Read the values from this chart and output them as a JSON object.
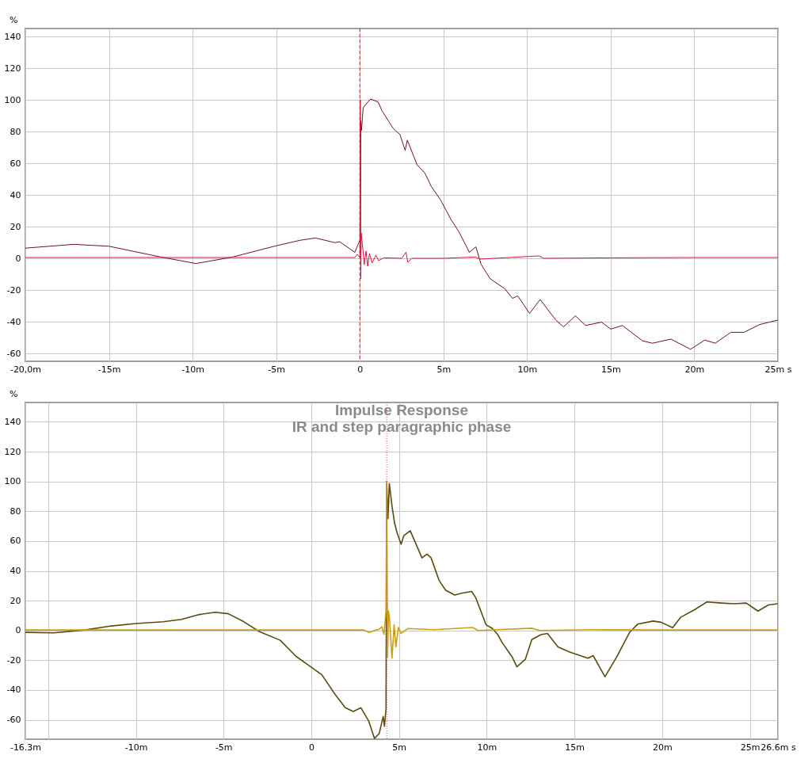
{
  "chart_data": [
    {
      "type": "line",
      "ylabel": "%",
      "xlim": [
        -20,
        25
      ],
      "ylim": [
        -65,
        145
      ],
      "grid": true,
      "xticks": [
        {
          "value": -20,
          "label": "-20,0m"
        },
        {
          "value": -15,
          "label": "-15m"
        },
        {
          "value": -10,
          "label": "-10m"
        },
        {
          "value": -5,
          "label": "-5m"
        },
        0,
        {
          "value": 5,
          "label": "5m"
        },
        {
          "value": 10,
          "label": "10m"
        },
        {
          "value": 15,
          "label": "15m"
        },
        {
          "value": 20,
          "label": "20m"
        },
        {
          "value": 25,
          "label": "25m s"
        }
      ],
      "yticks": [
        -60,
        -40,
        -20,
        0,
        20,
        40,
        60,
        80,
        100,
        120,
        140
      ],
      "ref_lines": [
        {
          "axis": "x",
          "value": 0,
          "color": "#cc2222",
          "line_style": "dashed"
        }
      ],
      "series": [
        {
          "color": "#6e0f2a",
          "x": [
            -20,
            -17.1,
            -15,
            -11.9,
            -9.8,
            -7.6,
            -5,
            -3.55,
            -2.65,
            -1.5,
            -1.2,
            -0.3,
            -0.12,
            0.03,
            0.06,
            0.1,
            0.2,
            0.5,
            0.65,
            1.1,
            1.3,
            1.7,
            2.0,
            2.4,
            2.71,
            2.84,
            3.42,
            3.9,
            4.28,
            4.83,
            5.45,
            5.92,
            6.55,
            6.94,
            7.25,
            7.8,
            8.66,
            9.13,
            9.44,
            10.15,
            10.78,
            11.72,
            12.18,
            12.89,
            13.5,
            14.45,
            15.0,
            15.7,
            16.9,
            17.5,
            18.6,
            19.77,
            20.63,
            21.25,
            22.19,
            22.97,
            23.91,
            24.98
          ],
          "values": [
            6.4,
            8.8,
            7.6,
            0.8,
            -3.3,
            0.8,
            7.9,
            11.4,
            12.8,
            9.9,
            10.4,
            3.8,
            8.4,
            12,
            86.8,
            80.7,
            95,
            98.9,
            100.5,
            98.6,
            93.6,
            86.8,
            81.9,
            78.1,
            68.1,
            74.6,
            59,
            53.6,
            45.2,
            36.8,
            24.5,
            16.8,
            3.8,
            7.2,
            -3.8,
            -13,
            -19.1,
            -25.3,
            -23.7,
            -34.8,
            -26,
            -39,
            -43.3,
            -36.3,
            -42.4,
            -40.3,
            -44.7,
            -42.4,
            -52.1,
            -53.6,
            -51,
            -57.4,
            -51.6,
            -53.6,
            -46.7,
            -46.7,
            -41.8,
            -39
          ]
        },
        {
          "color": "#e0103c",
          "x": [
            -20,
            -10,
            -1,
            -0.3,
            -0.15,
            0,
            0.03,
            0.06,
            0.08,
            0.19,
            0.26,
            0.37,
            0.47,
            0.58,
            0.73,
            0.96,
            1.12,
            1.43,
            2.5,
            2.76,
            2.87,
            3.1,
            5,
            6.9,
            7.2,
            10.7,
            11,
            15,
            20,
            25
          ],
          "values": [
            0.5,
            0.5,
            0.5,
            0.5,
            2.5,
            0.5,
            100,
            -13,
            16,
            5,
            -4,
            4.5,
            -5,
            3,
            -3,
            2,
            -1.5,
            0.3,
            0,
            3.8,
            -2.6,
            0,
            0,
            0.8,
            -0.5,
            1.5,
            0,
            0.3,
            0.5,
            0.5
          ]
        }
      ]
    },
    {
      "type": "line",
      "title": "Impulse Response",
      "subtitle": "IR and step paragraphic phase",
      "ylabel": "%",
      "xlim": [
        -16.3,
        26.6
      ],
      "ylim": [
        -73,
        153
      ],
      "grid": true,
      "xticks": [
        {
          "value": -16.3,
          "label": "-16.3m"
        },
        {
          "value": -15,
          "label": null
        },
        {
          "value": -10,
          "label": "-10m"
        },
        {
          "value": -5,
          "label": "-5m"
        },
        0,
        {
          "value": 5,
          "label": "5m"
        },
        {
          "value": 10,
          "label": "10m"
        },
        {
          "value": 15,
          "label": "15m"
        },
        {
          "value": 20,
          "label": "20m"
        },
        {
          "value": 25,
          "label": "25m"
        },
        {
          "value": 26.6,
          "label": "26.6m s"
        }
      ],
      "yticks": [
        -60,
        -40,
        -20,
        0,
        20,
        40,
        60,
        80,
        100,
        120,
        140
      ],
      "ref_lines": [
        {
          "axis": "x",
          "value": 4.3,
          "color": "#e05050",
          "line_style": "dotted"
        }
      ],
      "series": [
        {
          "color": "#5a4a12",
          "x": [
            -16.3,
            -14.67,
            -12.9,
            -11.4,
            -10,
            -8.44,
            -7.4,
            -6.37,
            -5.47,
            -4.73,
            -3.84,
            -2.95,
            -1.77,
            -0.88,
            0,
            0.6,
            1.35,
            1.94,
            2.39,
            2.83,
            3.28,
            3.6,
            3.87,
            4.1,
            4.17,
            4.26,
            4.3,
            4.37,
            4.45,
            4.6,
            4.75,
            4.9,
            5.12,
            5.27,
            5.64,
            6.31,
            6.6,
            6.83,
            7.28,
            7.65,
            8.17,
            8.62,
            9.14,
            9.37,
            9.96,
            10.33,
            10.63,
            10.86,
            11.45,
            11.72,
            12.2,
            12.57,
            13.09,
            13.46,
            14.06,
            14.73,
            15.77,
            16.07,
            16.74,
            17.41,
            18.15,
            18.6,
            19.49,
            19.94,
            20.6,
            21.05,
            21.87,
            22.55,
            23.37,
            24.11,
            24.79,
            25.46,
            26.06,
            26.58
          ],
          "values": [
            -1.3,
            -1.6,
            0.3,
            3,
            4.6,
            5.8,
            7.4,
            10.7,
            12.2,
            11.2,
            5.8,
            -0.8,
            -6.6,
            -17.3,
            -24.7,
            -29.7,
            -42.8,
            -51.9,
            -54.4,
            -51.9,
            -61,
            -72.5,
            -69.2,
            -57.7,
            -64.3,
            -52.7,
            100,
            75,
            98.5,
            83.6,
            71.9,
            65.3,
            57.8,
            63.6,
            66.9,
            48.7,
            51.2,
            48.7,
            33.7,
            27.1,
            23.8,
            25.1,
            26.2,
            22.1,
            3.8,
            1.3,
            -2.8,
            -7.8,
            -17.8,
            -24.4,
            -19.4,
            -6.1,
            -2.8,
            -2,
            -11.1,
            -14.5,
            -18.6,
            -16.9,
            -31.1,
            -17.8,
            -1.2,
            4.2,
            6.3,
            5.5,
            1.8,
            8.8,
            14.1,
            19.1,
            18.4,
            17.9,
            18.4,
            13,
            17.1,
            17.9
          ]
        },
        {
          "color": "#c9a012",
          "x": [
            -16.3,
            -10,
            -5,
            0,
            3,
            3.3,
            3.6,
            3.87,
            4.02,
            4.14,
            4.26,
            4.3,
            4.35,
            4.4,
            4.45,
            4.6,
            4.72,
            4.82,
            4.97,
            5.12,
            5.49,
            7,
            9.2,
            9.5,
            12.6,
            13,
            16,
            20,
            26.6
          ],
          "values": [
            0.3,
            0.3,
            0.3,
            0.3,
            0.3,
            -1.3,
            0,
            0.8,
            2.5,
            -2.5,
            13,
            100,
            -18,
            13,
            9.6,
            -18.6,
            3.8,
            -11,
            2,
            -2,
            1.3,
            0.5,
            2,
            0,
            1.5,
            0,
            0.5,
            0.3,
            0.3
          ]
        }
      ]
    }
  ]
}
